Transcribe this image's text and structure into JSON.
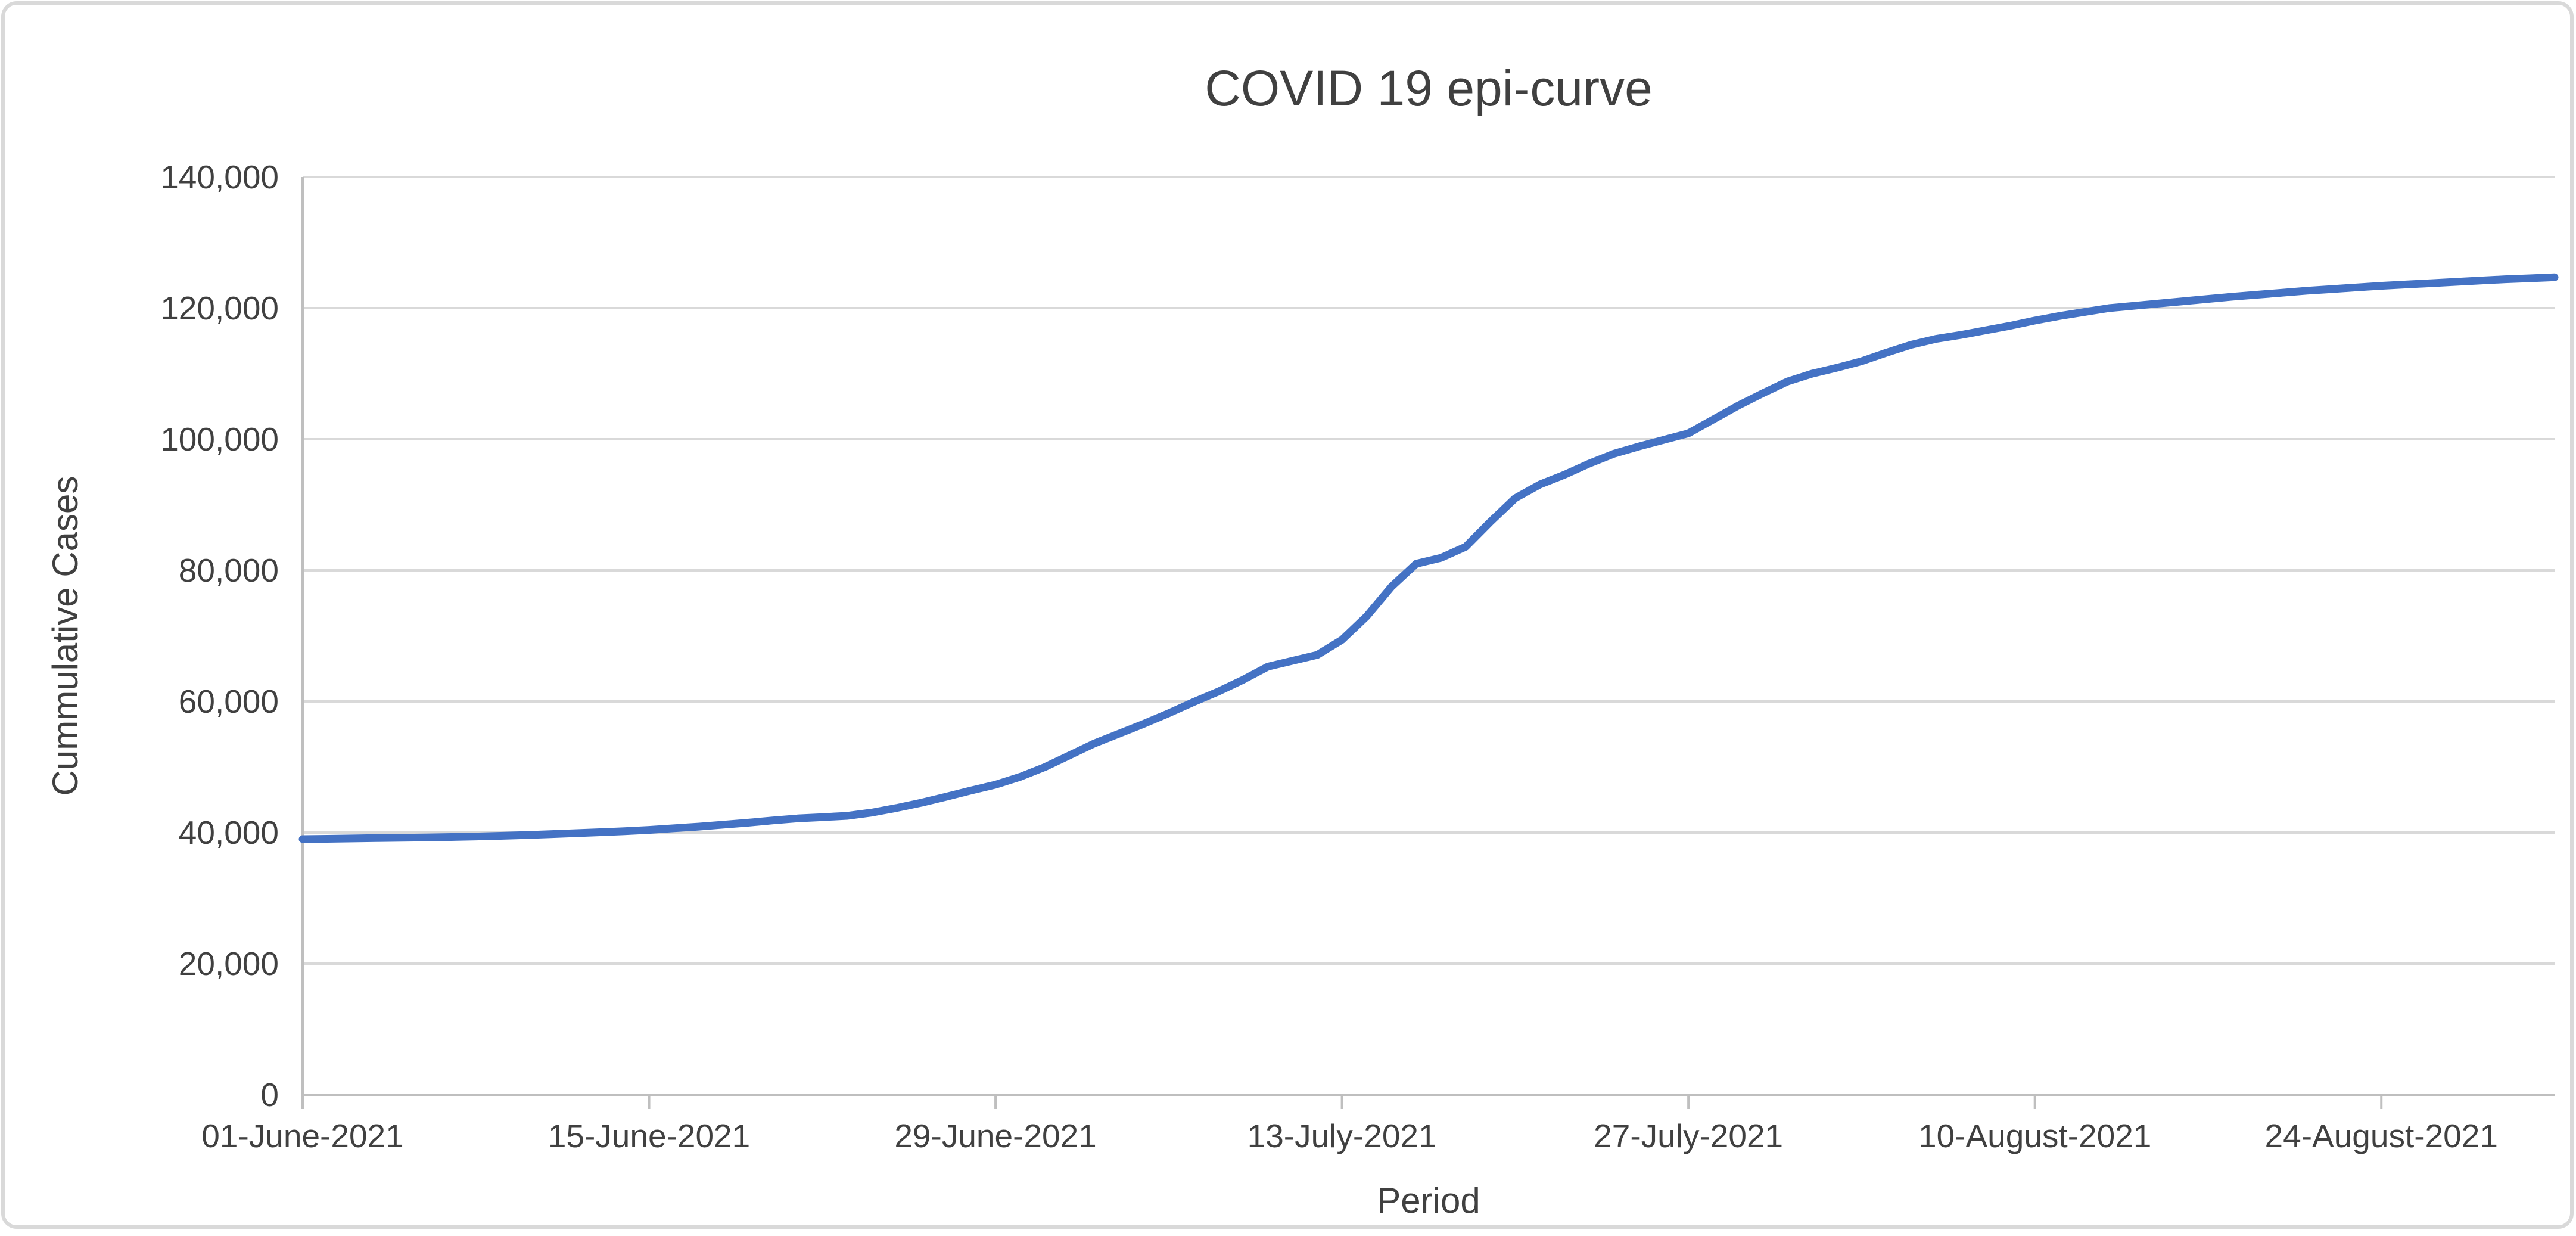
{
  "chart_data": {
    "type": "line",
    "title": "COVID 19 epi-curve",
    "xlabel": "Period",
    "ylabel": "Cummulative Cases",
    "ylim": [
      0,
      140000
    ],
    "grid": "horizontal-only",
    "legend": "none",
    "colors": {
      "line": "#4472C4",
      "gridline": "#D9D9D9",
      "axis": "#BFBFBF",
      "text": "#404040",
      "frame": "#D9D9D9"
    },
    "y_tick_values": [
      0,
      20000,
      40000,
      60000,
      80000,
      100000,
      120000,
      140000
    ],
    "y_tick_labels": [
      "0",
      "20,000",
      "40,000",
      "60,000",
      "80,000",
      "100,000",
      "120,000",
      "140,000"
    ],
    "x_ticks": [
      {
        "label": "01-June-2021",
        "day": 0
      },
      {
        "label": "15-June-2021",
        "day": 14
      },
      {
        "label": "29-June-2021",
        "day": 28
      },
      {
        "label": "13-July-2021",
        "day": 42
      },
      {
        "label": "27-July-2021",
        "day": 56
      },
      {
        "label": "10-August-2021",
        "day": 70
      },
      {
        "label": "24-August-2021",
        "day": 84
      }
    ],
    "dates": [
      "2021-06-01",
      "2021-06-02",
      "2021-06-03",
      "2021-06-04",
      "2021-06-05",
      "2021-06-06",
      "2021-06-07",
      "2021-06-08",
      "2021-06-09",
      "2021-06-10",
      "2021-06-11",
      "2021-06-12",
      "2021-06-13",
      "2021-06-14",
      "2021-06-15",
      "2021-06-16",
      "2021-06-17",
      "2021-06-18",
      "2021-06-19",
      "2021-06-20",
      "2021-06-21",
      "2021-06-22",
      "2021-06-23",
      "2021-06-24",
      "2021-06-25",
      "2021-06-26",
      "2021-06-27",
      "2021-06-28",
      "2021-06-29",
      "2021-06-30",
      "2021-07-01",
      "2021-07-02",
      "2021-07-03",
      "2021-07-04",
      "2021-07-05",
      "2021-07-06",
      "2021-07-07",
      "2021-07-08",
      "2021-07-09",
      "2021-07-10",
      "2021-07-11",
      "2021-07-12",
      "2021-07-13",
      "2021-07-14",
      "2021-07-15",
      "2021-07-16",
      "2021-07-17",
      "2021-07-18",
      "2021-07-19",
      "2021-07-20",
      "2021-07-21",
      "2021-07-22",
      "2021-07-23",
      "2021-07-24",
      "2021-07-25",
      "2021-07-26",
      "2021-07-27",
      "2021-07-28",
      "2021-07-29",
      "2021-07-30",
      "2021-07-31",
      "2021-08-01",
      "2021-08-02",
      "2021-08-03",
      "2021-08-04",
      "2021-08-05",
      "2021-08-06",
      "2021-08-07",
      "2021-08-08",
      "2021-08-09",
      "2021-08-10",
      "2021-08-11",
      "2021-08-12",
      "2021-08-13",
      "2021-08-14",
      "2021-08-15",
      "2021-08-16",
      "2021-08-17",
      "2021-08-18",
      "2021-08-19",
      "2021-08-20",
      "2021-08-21",
      "2021-08-22",
      "2021-08-23",
      "2021-08-24",
      "2021-08-25",
      "2021-08-26",
      "2021-08-27",
      "2021-08-28",
      "2021-08-29",
      "2021-08-30",
      "2021-08-31"
    ],
    "values": [
      39000,
      39050,
      39100,
      39150,
      39200,
      39250,
      39320,
      39400,
      39500,
      39620,
      39750,
      39900,
      40050,
      40200,
      40400,
      40650,
      40900,
      41200,
      41500,
      41850,
      42150,
      42350,
      42550,
      43050,
      43750,
      44550,
      45450,
      46400,
      47300,
      48500,
      50000,
      51800,
      53600,
      55100,
      56600,
      58200,
      59900,
      61500,
      63300,
      65300,
      66200,
      67100,
      69400,
      73000,
      77500,
      81000,
      81900,
      83600,
      87400,
      91000,
      93100,
      94600,
      96300,
      97800,
      98900,
      99900,
      100900,
      103000,
      105100,
      107000,
      108800,
      110000,
      110900,
      111900,
      113200,
      114400,
      115300,
      115900,
      116600,
      117300,
      118100,
      118800,
      119400,
      120000,
      120350,
      120700,
      121050,
      121400,
      121750,
      122050,
      122350,
      122650,
      122900,
      123150,
      123400,
      123600,
      123800,
      124000,
      124200,
      124400,
      124550,
      124700
    ]
  }
}
